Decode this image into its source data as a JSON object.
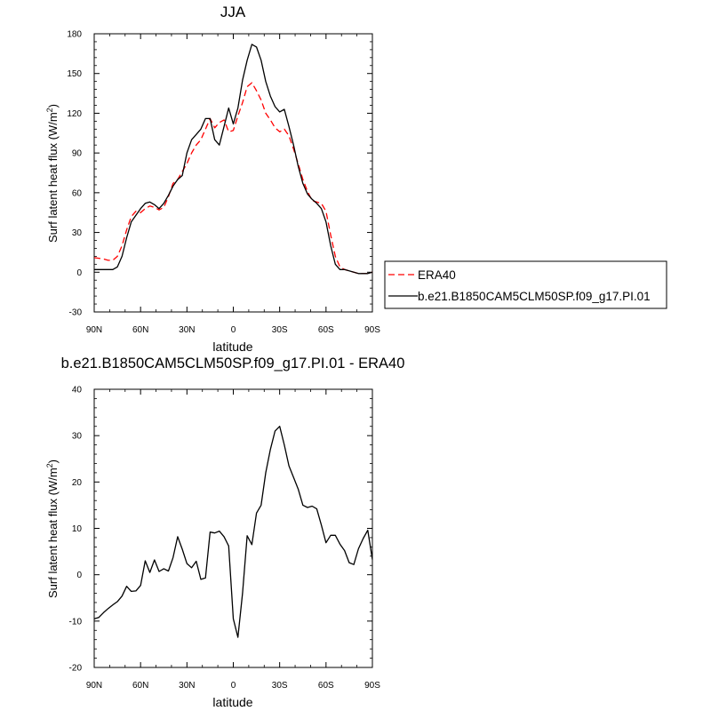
{
  "chart_data": [
    {
      "type": "line",
      "title": "JJA",
      "xlabel": "latitude",
      "ylabel": "Surf latent heat flux (W/m",
      "ylabel_sup": "2",
      "ylabel_close": ")",
      "xlim": [
        90,
        -90
      ],
      "ylim": [
        -30,
        180
      ],
      "xticks": [
        90,
        60,
        30,
        0,
        -30,
        -60,
        -90
      ],
      "xtick_labels": [
        "90N",
        "60N",
        "30N",
        "0",
        "30S",
        "60S",
        "90S"
      ],
      "yticks": [
        -30,
        0,
        30,
        60,
        90,
        120,
        150,
        180
      ],
      "ytick_labels": [
        "-30",
        "0",
        "30",
        "60",
        "90",
        "120",
        "150",
        "180"
      ],
      "legend": "right",
      "grid": false,
      "series": [
        {
          "name": "ERA40",
          "color": "#ff0000",
          "dash": "dashed",
          "x": [
            90,
            84,
            81,
            78,
            75,
            72,
            69,
            66,
            63,
            60,
            57,
            54,
            51,
            48,
            45,
            42,
            39,
            36,
            33,
            30,
            27,
            24,
            21,
            18,
            15,
            12,
            9,
            6,
            3,
            0,
            -3,
            -6,
            -9,
            -12,
            -15,
            -18,
            -21,
            -24,
            -27,
            -30,
            -33,
            -36,
            -39,
            -42,
            -45,
            -48,
            -51,
            -54,
            -57,
            -60,
            -63,
            -66,
            -69,
            -72,
            -75,
            -78,
            -81,
            -84,
            -87,
            -90
          ],
          "y": [
            11,
            10,
            9,
            9,
            12,
            20,
            32,
            42,
            46,
            45,
            48,
            50,
            49,
            47,
            49,
            57,
            67,
            70,
            76,
            82,
            90,
            96,
            100,
            108,
            116,
            109,
            113,
            115,
            106,
            107,
            118,
            128,
            140,
            143,
            137,
            130,
            120,
            115,
            109,
            106,
            108,
            103,
            93,
            82,
            70,
            61,
            54,
            53,
            52,
            46,
            28,
            12,
            4,
            2,
            1,
            0,
            -1,
            -1,
            -1,
            0
          ]
        },
        {
          "name": "b.e21.B1850CAM5CLM50SP.f09_g17.PI.01",
          "color": "#000000",
          "dash": "solid",
          "x": [
            90,
            84,
            81,
            78,
            75,
            72,
            69,
            66,
            63,
            60,
            57,
            54,
            51,
            48,
            45,
            42,
            39,
            36,
            33,
            30,
            27,
            24,
            21,
            18,
            15,
            12,
            9,
            6,
            3,
            0,
            -3,
            -6,
            -9,
            -12,
            -15,
            -18,
            -21,
            -24,
            -27,
            -30,
            -33,
            -36,
            -39,
            -42,
            -45,
            -48,
            -51,
            -54,
            -57,
            -60,
            -63,
            -66,
            -69,
            -72,
            -75,
            -78,
            -81,
            -84,
            -87,
            -90
          ],
          "y": [
            2,
            2,
            2,
            2,
            4,
            12,
            26,
            38,
            43,
            48,
            52,
            53,
            51,
            48,
            52,
            58,
            65,
            70,
            73,
            90,
            100,
            104,
            108,
            116,
            116,
            100,
            96,
            110,
            124,
            112,
            124,
            145,
            160,
            172,
            170,
            160,
            144,
            133,
            125,
            121,
            123,
            110,
            96,
            80,
            67,
            59,
            55,
            52,
            48,
            38,
            20,
            6,
            2,
            2,
            1,
            0,
            -1,
            -1,
            -1,
            0
          ]
        }
      ]
    },
    {
      "type": "line",
      "title": "b.e21.B1850CAM5CLM50SP.f09_g17.PI.01 - ERA40",
      "xlabel": "latitude",
      "ylabel": "Surf latent heat flux (W/m",
      "ylabel_sup": "2",
      "ylabel_close": ")",
      "xlim": [
        90,
        -90
      ],
      "ylim": [
        -20,
        40
      ],
      "xticks": [
        90,
        60,
        30,
        0,
        -30,
        -60,
        -90
      ],
      "xtick_labels": [
        "90N",
        "60N",
        "30N",
        "0",
        "30S",
        "60S",
        "90S"
      ],
      "yticks": [
        -20,
        -10,
        0,
        10,
        20,
        30,
        40
      ],
      "ytick_labels": [
        "-20",
        "-10",
        "0",
        "10",
        "20",
        "30",
        "40"
      ],
      "grid": false,
      "series": [
        {
          "color": "#000000",
          "dash": "solid",
          "x": [
            90,
            87,
            84,
            81,
            78,
            75,
            72,
            69,
            66,
            63,
            60,
            57,
            54,
            51,
            48,
            45,
            42,
            39,
            36,
            33,
            30,
            27,
            24,
            21,
            18,
            15,
            12,
            9,
            6,
            3,
            0,
            -3,
            -6,
            -9,
            -12,
            -15,
            -18,
            -21,
            -24,
            -27,
            -30,
            -33,
            -36,
            -39,
            -42,
            -45,
            -48,
            -51,
            -54,
            -57,
            -60,
            -63,
            -66,
            -69,
            -72,
            -75,
            -78,
            -81,
            -84,
            -87,
            -90
          ],
          "y": [
            -9.5,
            -9.2,
            -8.2,
            -7.3,
            -6.5,
            -5.8,
            -4.6,
            -2.5,
            -3.6,
            -3.5,
            -2.3,
            3.0,
            0.5,
            3.2,
            0.7,
            1.3,
            0.8,
            3.7,
            8.2,
            5.5,
            2.4,
            1.5,
            2.9,
            -1.0,
            -0.7,
            9.2,
            9.0,
            9.4,
            8.2,
            6.2,
            -9.5,
            -13.5,
            -4.0,
            8.4,
            6.5,
            13.3,
            15.0,
            22.0,
            27.0,
            31.0,
            32.0,
            28.0,
            23.5,
            21.0,
            18.5,
            15.0,
            14.5,
            14.8,
            14.2,
            10.7,
            6.9,
            8.5,
            8.5,
            6.6,
            5.2,
            2.6,
            2.2,
            5.6,
            7.8,
            9.6,
            3.3
          ]
        }
      ]
    }
  ]
}
